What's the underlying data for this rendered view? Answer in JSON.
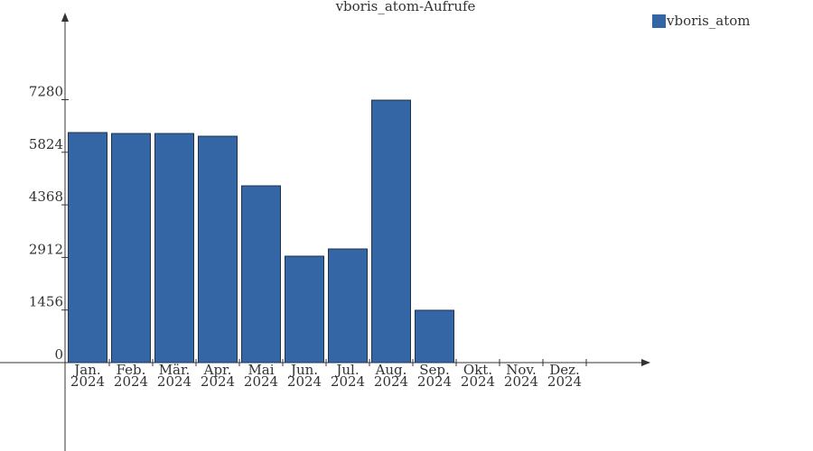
{
  "chart_data": {
    "type": "bar",
    "title": "vboris_atom-Aufrufe",
    "categories": [
      "Jan. 2024",
      "Feb. 2024",
      "Mär. 2024",
      "Apr. 2024",
      "Mai 2024",
      "Jun. 2024",
      "Jul. 2024",
      "Aug. 2024",
      "Sep. 2024",
      "Okt. 2024",
      "Nov. 2024",
      "Dez. 2024"
    ],
    "series": [
      {
        "name": "vboris_atom",
        "color": "#3465a4",
        "values": [
          6369,
          6343,
          6343,
          6268,
          4895,
          2947,
          3147,
          7267,
          1449,
          0,
          0,
          0
        ]
      }
    ],
    "ylim": [
      0,
      9665
    ],
    "yticks": [
      0,
      1456,
      2912,
      4368,
      5824,
      7280
    ]
  }
}
